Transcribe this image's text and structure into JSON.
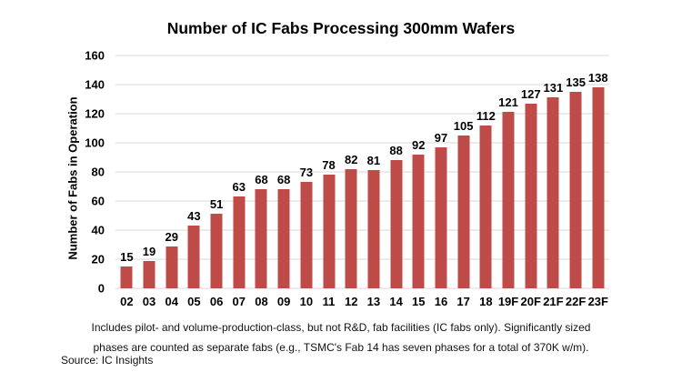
{
  "chart_data": {
    "type": "bar",
    "title": "Number of IC Fabs Processing 300mm Wafers",
    "xlabel": "",
    "ylabel": "Number of Fabs in Operation",
    "categories": [
      "02",
      "03",
      "04",
      "05",
      "06",
      "07",
      "08",
      "09",
      "10",
      "11",
      "12",
      "13",
      "14",
      "15",
      "16",
      "17",
      "18",
      "19F",
      "20F",
      "21F",
      "22F",
      "23F"
    ],
    "values": [
      15,
      19,
      29,
      43,
      51,
      63,
      68,
      68,
      73,
      78,
      82,
      81,
      88,
      92,
      97,
      105,
      112,
      121,
      127,
      131,
      135,
      138
    ],
    "ylim": [
      0,
      160
    ],
    "ytick_step": 20,
    "grid": true,
    "legend": "none",
    "bar_color": "#BE4B48",
    "gridline_color": "#D9D9D9",
    "label_color": "#000000"
  },
  "footnote": {
    "line1": "Includes pilot- and volume-production-class, but not R&D, fab facilities (IC fabs only).  Significantly sized",
    "line2": "phases are counted as separate fabs (e.g., TSMC's Fab 14 has seven phases for a total of 370K w/m)."
  },
  "source": "Source: IC Insights"
}
